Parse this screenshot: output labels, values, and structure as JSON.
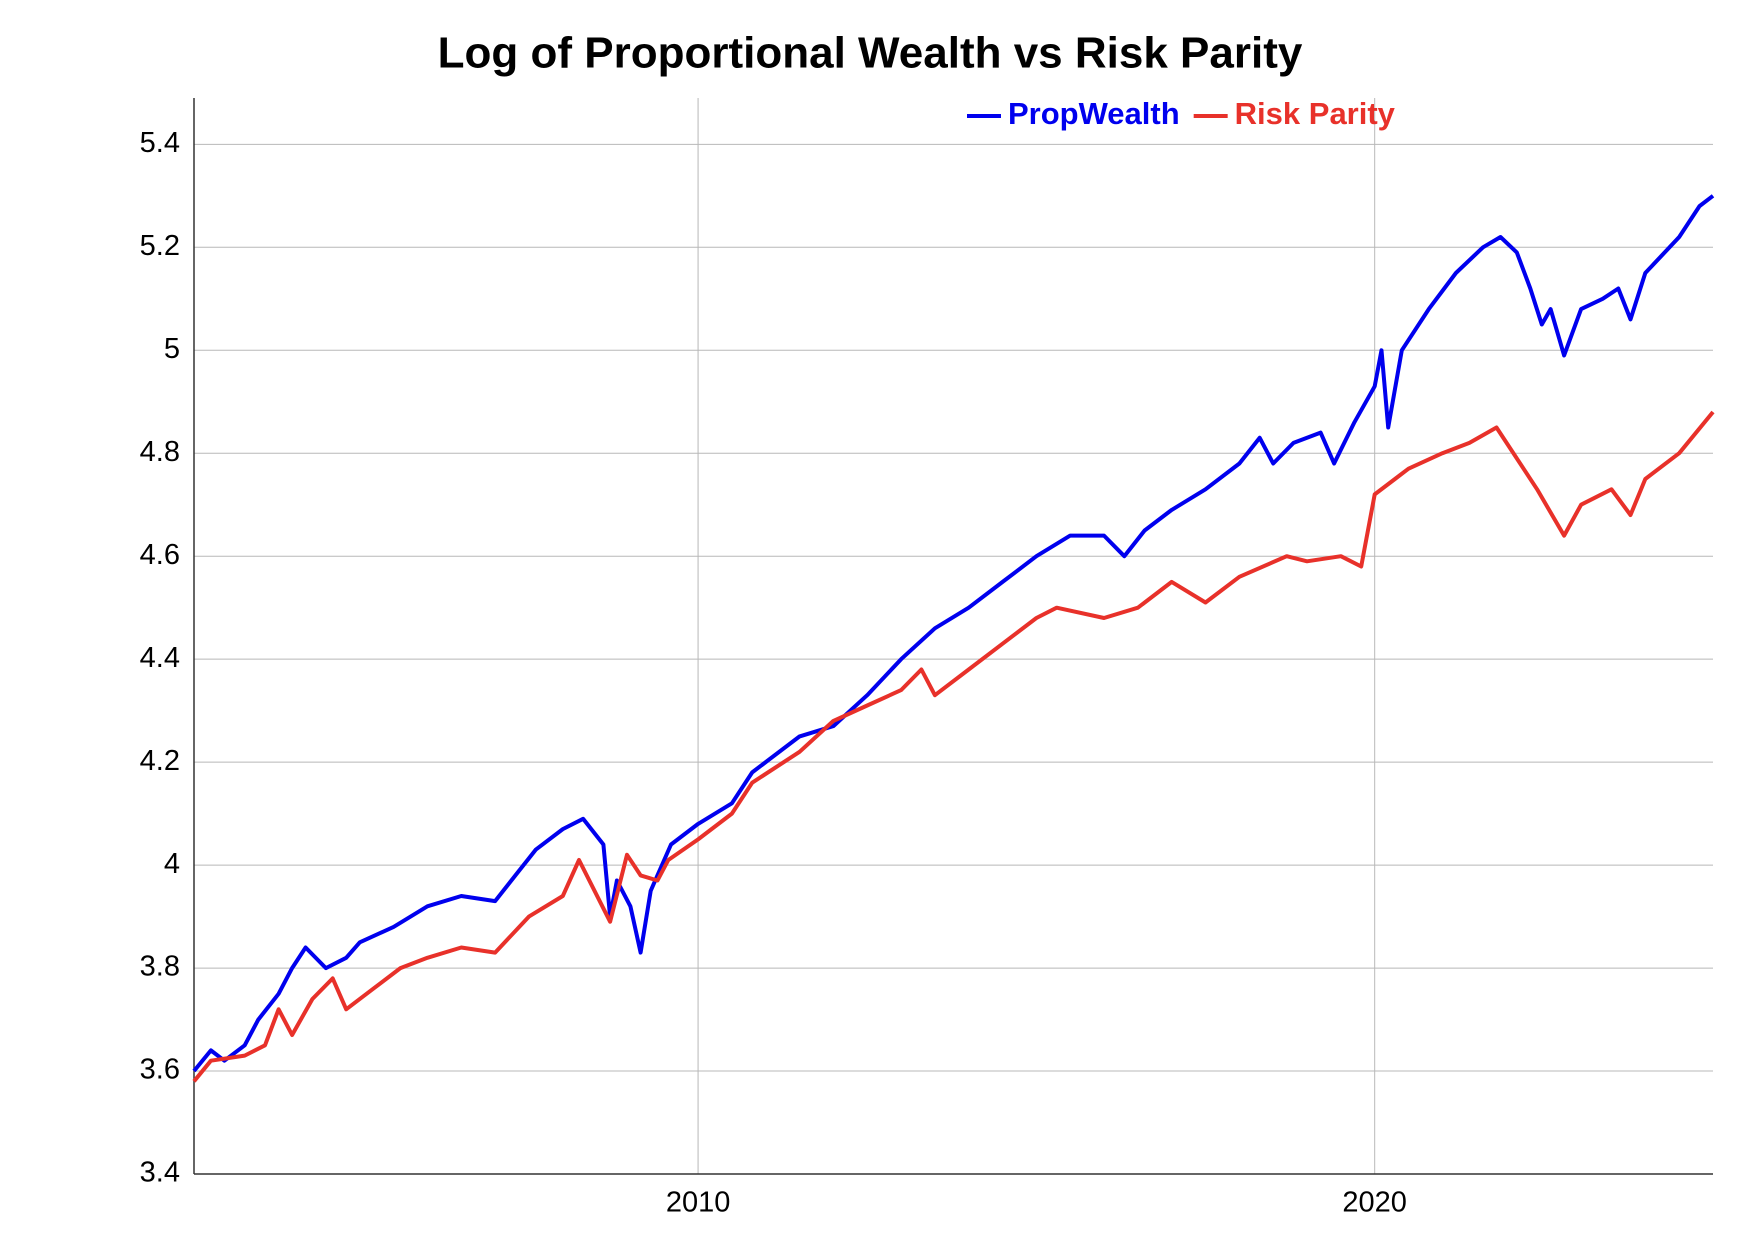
{
  "chart_data": {
    "type": "line",
    "title": "Log of Proportional Wealth vs Risk Parity",
    "xlim": [
      2002.55,
      2025.0
    ],
    "xticks": [
      2010,
      2020
    ],
    "ylim": [
      3.4,
      5.49
    ],
    "yticks": [
      3.4,
      3.6,
      3.8,
      4,
      4.2,
      4.4,
      4.6,
      4.8,
      5,
      5.2,
      5.4
    ],
    "grid": true,
    "legend": "top",
    "series": [
      {
        "name": "PropWealth",
        "color": "#0000ee",
        "x": [
          2002.55,
          2002.8,
          2003.0,
          2003.3,
          2003.5,
          2003.8,
          2004.0,
          2004.2,
          2004.5,
          2004.8,
          2005.0,
          2005.5,
          2006.0,
          2006.5,
          2007.0,
          2007.3,
          2007.6,
          2008.0,
          2008.3,
          2008.6,
          2008.7,
          2008.8,
          2009.0,
          2009.15,
          2009.3,
          2009.6,
          2010.0,
          2010.5,
          2010.8,
          2011.0,
          2011.5,
          2012.0,
          2012.5,
          2013.0,
          2013.5,
          2014.0,
          2014.5,
          2015.0,
          2015.5,
          2016.0,
          2016.3,
          2016.6,
          2017.0,
          2017.5,
          2018.0,
          2018.3,
          2018.5,
          2018.8,
          2019.2,
          2019.4,
          2019.7,
          2020.0,
          2020.1,
          2020.2,
          2020.4,
          2020.8,
          2021.2,
          2021.6,
          2021.86,
          2022.1,
          2022.3,
          2022.47,
          2022.6,
          2022.8,
          2023.05,
          2023.37,
          2023.6,
          2023.78,
          2024.0,
          2024.5,
          2024.8,
          2025.0
        ],
        "values": [
          3.6,
          3.64,
          3.62,
          3.65,
          3.7,
          3.75,
          3.8,
          3.84,
          3.8,
          3.82,
          3.85,
          3.88,
          3.92,
          3.94,
          3.93,
          3.98,
          4.03,
          4.07,
          4.09,
          4.04,
          3.9,
          3.97,
          3.92,
          3.83,
          3.95,
          4.04,
          4.08,
          4.12,
          4.18,
          4.2,
          4.25,
          4.27,
          4.33,
          4.4,
          4.46,
          4.5,
          4.55,
          4.6,
          4.64,
          4.64,
          4.6,
          4.65,
          4.69,
          4.73,
          4.78,
          4.83,
          4.78,
          4.82,
          4.84,
          4.78,
          4.86,
          4.93,
          5.0,
          4.85,
          5.0,
          5.08,
          5.15,
          5.2,
          5.22,
          5.19,
          5.12,
          5.05,
          5.08,
          4.99,
          5.08,
          5.1,
          5.12,
          5.06,
          5.15,
          5.22,
          5.28,
          5.3
        ]
      },
      {
        "name": "Risk Parity",
        "color": "#e8312a",
        "x": [
          2002.55,
          2002.8,
          2003.3,
          2003.6,
          2003.8,
          2004.0,
          2004.3,
          2004.6,
          2004.8,
          2005.2,
          2005.6,
          2006.0,
          2006.5,
          2007.0,
          2007.5,
          2008.0,
          2008.24,
          2008.7,
          2008.95,
          2009.15,
          2009.4,
          2009.56,
          2010.0,
          2010.5,
          2010.8,
          2011.5,
          2012.0,
          2012.5,
          2013.0,
          2013.3,
          2013.5,
          2014.0,
          2014.5,
          2015.0,
          2015.3,
          2016.0,
          2016.5,
          2017.0,
          2017.5,
          2018.0,
          2018.7,
          2019.0,
          2019.5,
          2019.8,
          2020.0,
          2020.5,
          2021.0,
          2021.4,
          2021.8,
          2022.4,
          2022.8,
          2023.05,
          2023.5,
          2023.78,
          2024.0,
          2024.5,
          2025.0
        ],
        "values": [
          3.58,
          3.62,
          3.63,
          3.65,
          3.72,
          3.67,
          3.74,
          3.78,
          3.72,
          3.76,
          3.8,
          3.82,
          3.84,
          3.83,
          3.9,
          3.94,
          4.01,
          3.89,
          4.02,
          3.98,
          3.97,
          4.01,
          4.05,
          4.1,
          4.16,
          4.22,
          4.28,
          4.31,
          4.34,
          4.38,
          4.33,
          4.38,
          4.43,
          4.48,
          4.5,
          4.48,
          4.5,
          4.55,
          4.51,
          4.56,
          4.6,
          4.59,
          4.6,
          4.58,
          4.72,
          4.77,
          4.8,
          4.82,
          4.85,
          4.73,
          4.64,
          4.7,
          4.73,
          4.68,
          4.75,
          4.8,
          4.88
        ]
      }
    ]
  }
}
